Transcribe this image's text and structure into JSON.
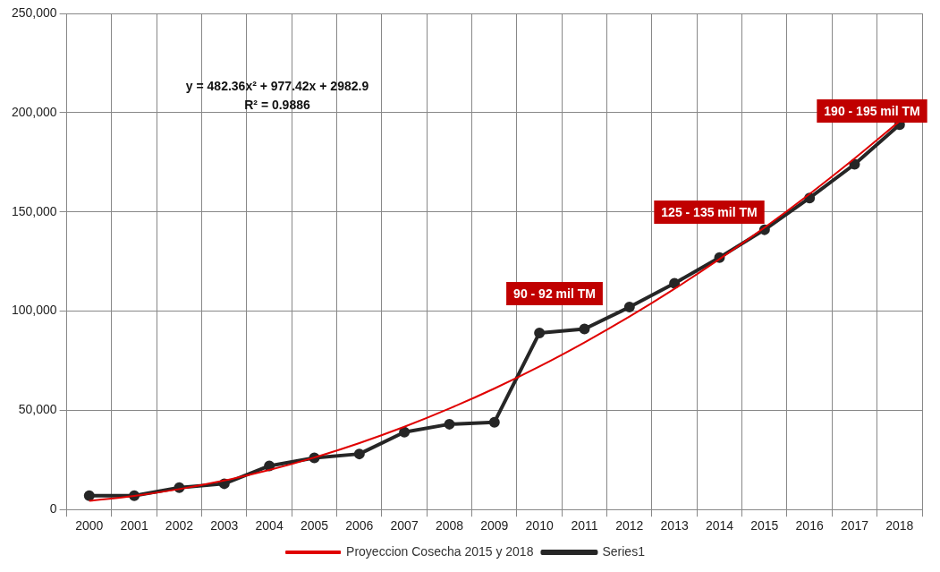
{
  "chart_data": {
    "type": "line",
    "categories": [
      "2000",
      "2001",
      "2002",
      "2003",
      "2004",
      "2005",
      "2006",
      "2007",
      "2008",
      "2009",
      "2010",
      "2011",
      "2012",
      "2013",
      "2014",
      "2015",
      "2016",
      "2017",
      "2018"
    ],
    "series": [
      {
        "name": "Series1",
        "color": "#262626",
        "marker": "circle",
        "values": [
          7000,
          7000,
          11000,
          13000,
          22000,
          26000,
          28000,
          39000,
          43000,
          44000,
          89000,
          91000,
          102000,
          114000,
          127000,
          141000,
          157000,
          174000,
          194000
        ]
      },
      {
        "name": "Proyeccion Cosecha 2015 y 2018",
        "color": "#e00000",
        "marker": "none",
        "values": [
          4400,
          6900,
          10300,
          14600,
          19900,
          26200,
          33500,
          41700,
          50900,
          61000,
          72100,
          84200,
          97200,
          111200,
          126200,
          142100,
          159000,
          176900,
          195700
        ]
      }
    ],
    "ylim": [
      0,
      250000
    ],
    "yticks": [
      {
        "value": 0,
        "label": "0"
      },
      {
        "value": 50000,
        "label": "50,000"
      },
      {
        "value": 100000,
        "label": "100,000"
      },
      {
        "value": 150000,
        "label": "150,000"
      },
      {
        "value": 200000,
        "label": "200,000"
      },
      {
        "value": 250000,
        "label": "250,000"
      }
    ],
    "grid": true,
    "legend": "bottom",
    "annotations": [
      "y = 482.36x² + 977.42x + 2982.9",
      "R² = 0.9886",
      "90 - 92 mil TM",
      "125 - 135 mil TM",
      "190 - 195 mil TM"
    ]
  }
}
